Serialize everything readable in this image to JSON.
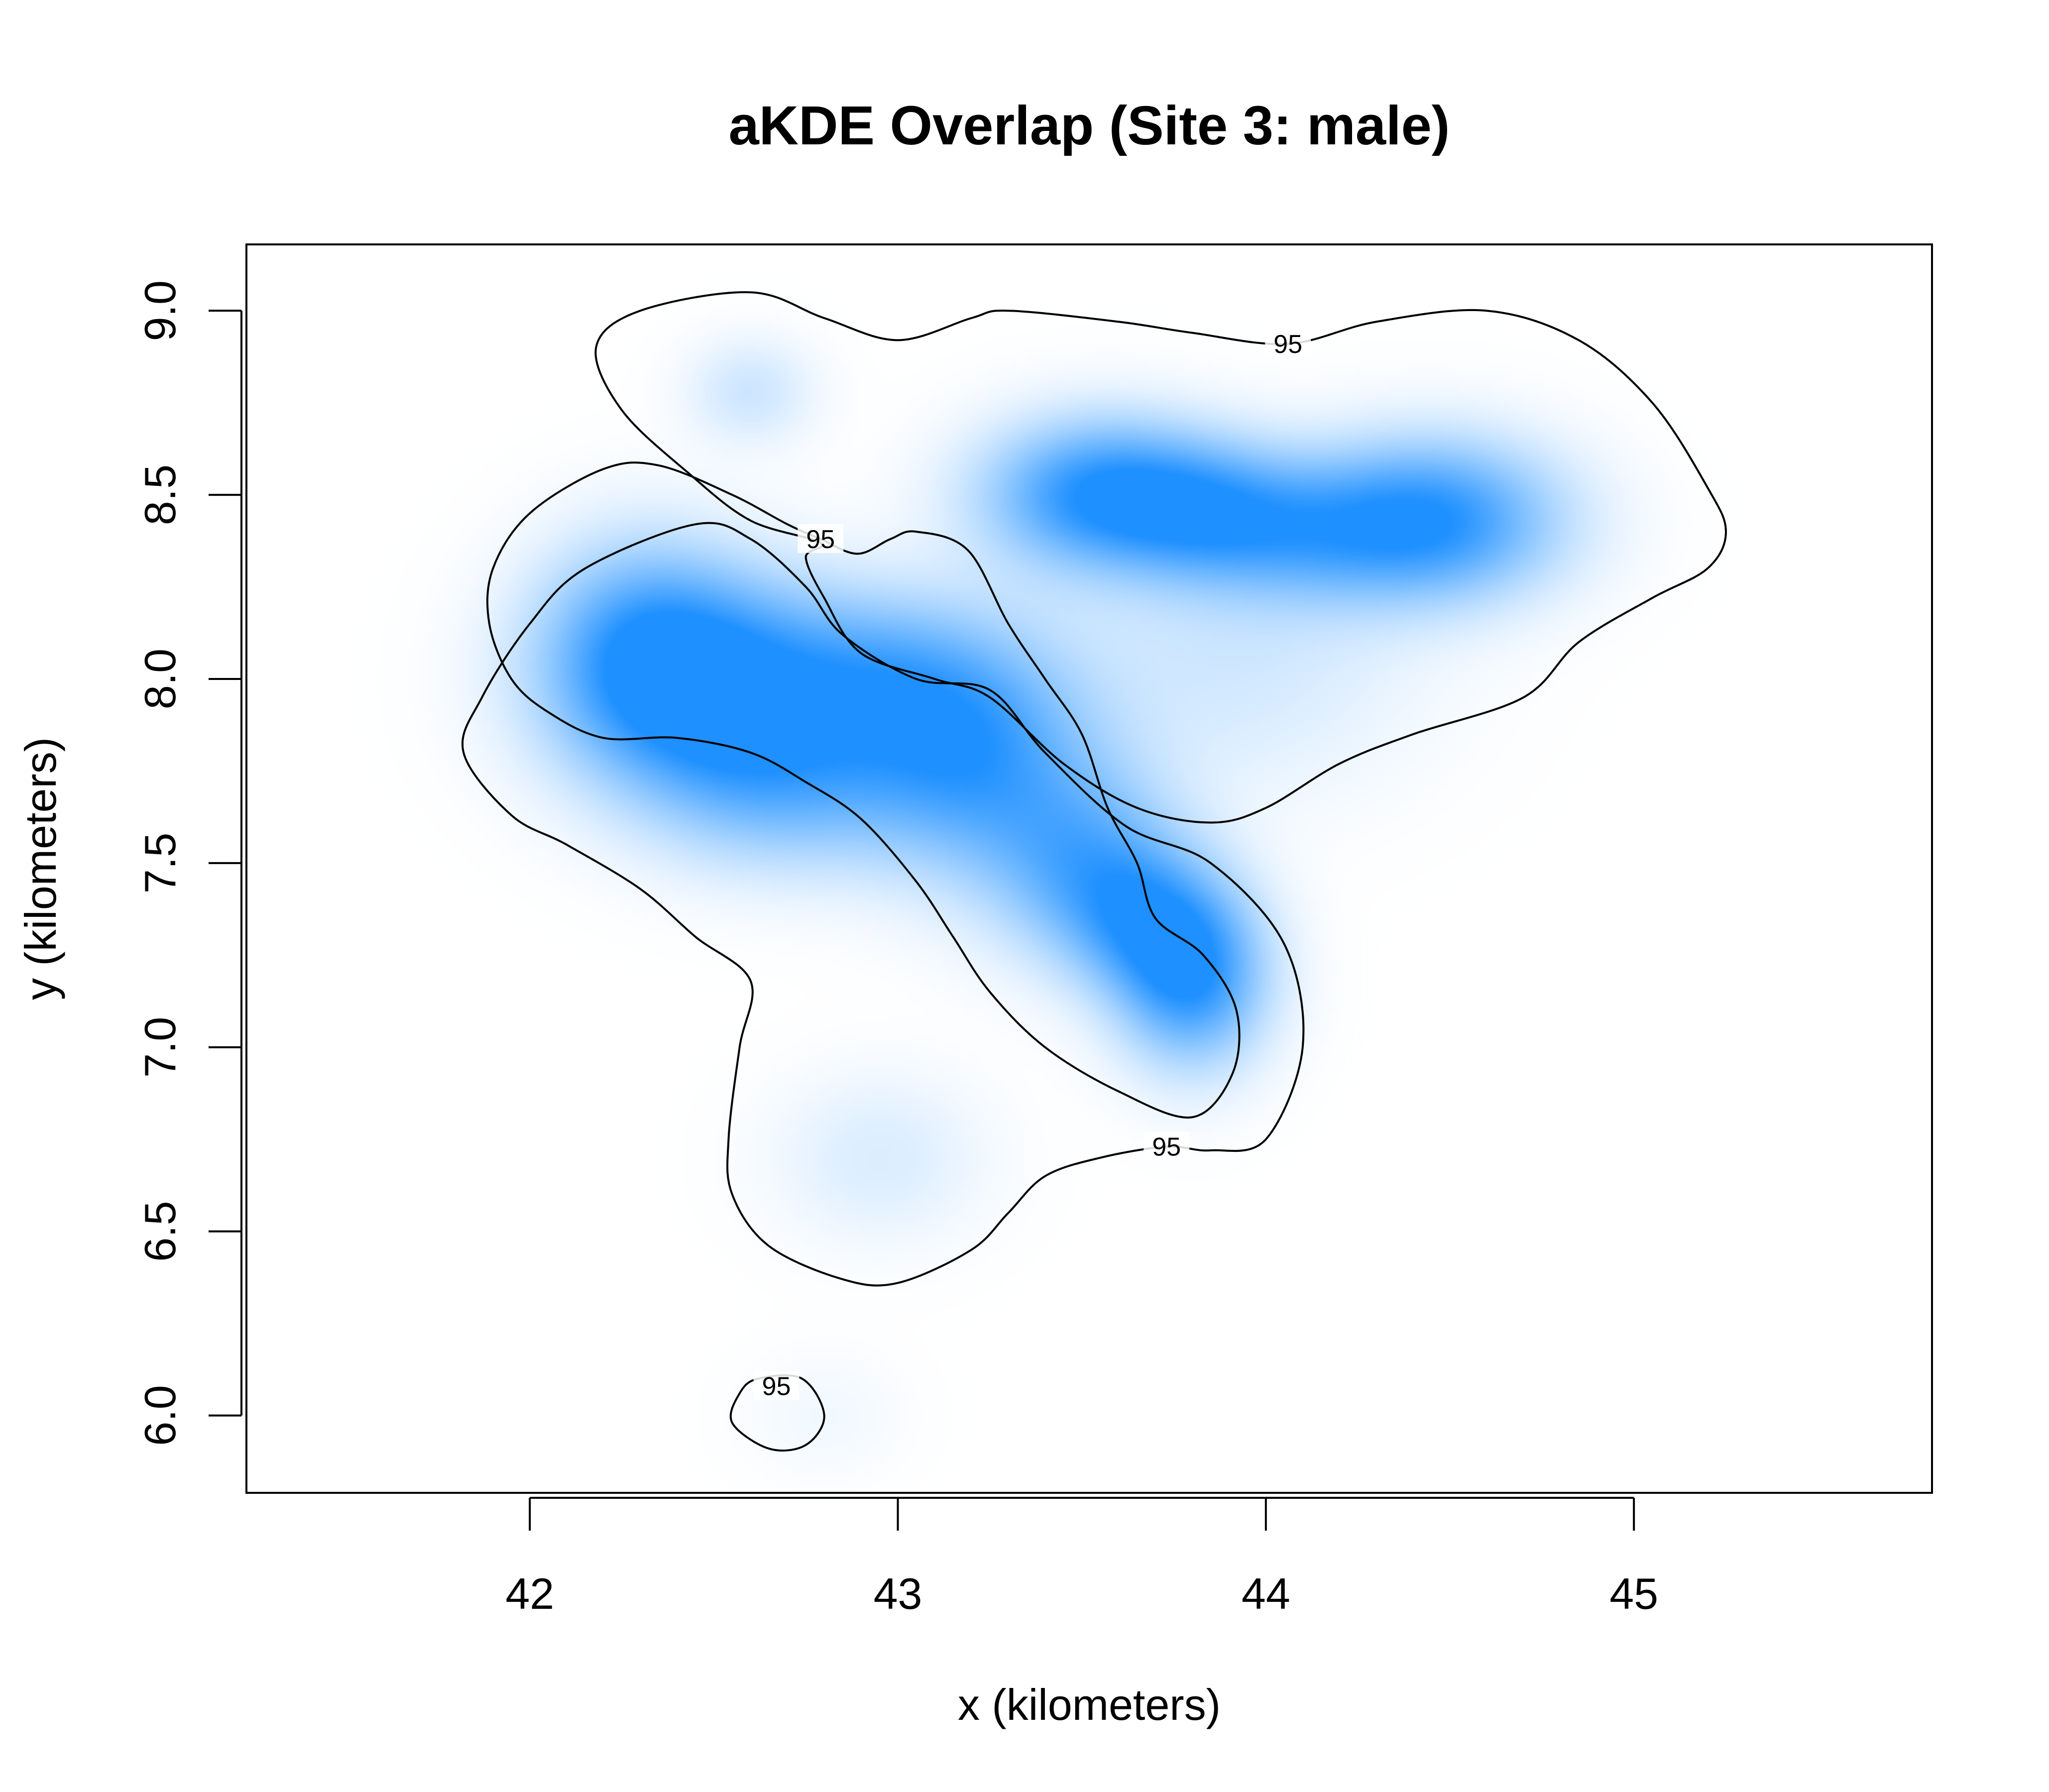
{
  "chart_data": {
    "type": "heatmap",
    "title": "aKDE Overlap (Site 3: male)",
    "xlabel": "x (kilometers)",
    "ylabel": "y (kilometers)",
    "xlim": [
      41.23,
      45.81
    ],
    "ylim": [
      5.79,
      9.18
    ],
    "xticks": [
      {
        "value": 42,
        "label": "42"
      },
      {
        "value": 43,
        "label": "43"
      },
      {
        "value": 44,
        "label": "44"
      },
      {
        "value": 45,
        "label": "45"
      }
    ],
    "yticks": [
      {
        "value": 6.0,
        "label": "6.0"
      },
      {
        "value": 6.5,
        "label": "6.5"
      },
      {
        "value": 7.0,
        "label": "7.0"
      },
      {
        "value": 7.5,
        "label": "7.5"
      },
      {
        "value": 8.0,
        "label": "8.0"
      },
      {
        "value": 8.5,
        "label": "8.5"
      },
      {
        "value": 9.0,
        "label": "9.0"
      }
    ],
    "grid": false,
    "legend": "none",
    "colors": {
      "high": "#1e90ff",
      "low": "#ffffff",
      "contour": "#000000"
    },
    "density_peaks": [
      {
        "x": 42.5,
        "y": 7.97,
        "sx": 0.27,
        "sy": 0.2,
        "w": 1.0
      },
      {
        "x": 42.3,
        "y": 8.1,
        "sx": 0.2,
        "sy": 0.2,
        "w": 0.55
      },
      {
        "x": 42.7,
        "y": 7.7,
        "sx": 0.25,
        "sy": 0.16,
        "w": 0.45
      },
      {
        "x": 43.2,
        "y": 7.8,
        "sx": 0.22,
        "sy": 0.22,
        "w": 0.8
      },
      {
        "x": 42.95,
        "y": 8.0,
        "sx": 0.22,
        "sy": 0.16,
        "w": 0.45
      },
      {
        "x": 43.5,
        "y": 7.5,
        "sx": 0.18,
        "sy": 0.18,
        "w": 0.6
      },
      {
        "x": 43.8,
        "y": 7.2,
        "sx": 0.14,
        "sy": 0.17,
        "w": 0.95
      },
      {
        "x": 43.65,
        "y": 7.35,
        "sx": 0.14,
        "sy": 0.14,
        "w": 0.5
      },
      {
        "x": 43.55,
        "y": 8.5,
        "sx": 0.22,
        "sy": 0.14,
        "w": 0.95
      },
      {
        "x": 43.85,
        "y": 8.45,
        "sx": 0.18,
        "sy": 0.13,
        "w": 0.55
      },
      {
        "x": 44.45,
        "y": 8.43,
        "sx": 0.24,
        "sy": 0.15,
        "w": 0.95
      },
      {
        "x": 44.1,
        "y": 8.4,
        "sx": 0.2,
        "sy": 0.13,
        "w": 0.4
      },
      {
        "x": 43.9,
        "y": 8.05,
        "sx": 0.35,
        "sy": 0.25,
        "w": 0.2
      },
      {
        "x": 42.6,
        "y": 8.78,
        "sx": 0.12,
        "sy": 0.1,
        "w": 0.22
      },
      {
        "x": 42.95,
        "y": 6.7,
        "sx": 0.2,
        "sy": 0.16,
        "w": 0.16
      },
      {
        "x": 42.8,
        "y": 6.0,
        "sx": 0.15,
        "sy": 0.12,
        "w": 0.06
      }
    ],
    "contours": [
      {
        "level": "95",
        "label_at": {
          "x": 44.06,
          "y": 8.91
        },
        "points": [
          [
            42.79,
            8.37
          ],
          [
            42.6,
            8.43
          ],
          [
            42.43,
            8.56
          ],
          [
            42.25,
            8.73
          ],
          [
            42.18,
            8.9
          ],
          [
            42.3,
            9.0
          ],
          [
            42.6,
            9.05
          ],
          [
            42.8,
            8.98
          ],
          [
            43.0,
            8.92
          ],
          [
            43.2,
            8.98
          ],
          [
            43.3,
            9.0
          ],
          [
            43.6,
            8.97
          ],
          [
            43.8,
            8.94
          ],
          [
            44.06,
            8.91
          ],
          [
            44.3,
            8.97
          ],
          [
            44.6,
            9.0
          ],
          [
            44.85,
            8.92
          ],
          [
            45.05,
            8.75
          ],
          [
            45.2,
            8.52
          ],
          [
            45.25,
            8.4
          ],
          [
            45.2,
            8.3
          ],
          [
            45.05,
            8.22
          ],
          [
            44.85,
            8.1
          ],
          [
            44.7,
            7.95
          ],
          [
            44.4,
            7.85
          ],
          [
            44.2,
            7.77
          ],
          [
            44.0,
            7.65
          ],
          [
            43.85,
            7.61
          ],
          [
            43.65,
            7.65
          ],
          [
            43.45,
            7.77
          ],
          [
            43.25,
            7.95
          ],
          [
            43.1,
            8.0
          ],
          [
            42.9,
            8.07
          ],
          [
            42.8,
            8.22
          ],
          [
            42.75,
            8.33
          ]
        ]
      },
      {
        "level": "95",
        "label_at": {
          "x": 42.79,
          "y": 8.38
        },
        "points": [
          [
            42.79,
            8.38
          ],
          [
            42.7,
            8.42
          ],
          [
            42.55,
            8.5
          ],
          [
            42.35,
            8.58
          ],
          [
            42.2,
            8.57
          ],
          [
            42.0,
            8.45
          ],
          [
            41.9,
            8.3
          ],
          [
            41.89,
            8.15
          ],
          [
            41.95,
            8.0
          ],
          [
            42.05,
            7.91
          ],
          [
            42.2,
            7.84
          ],
          [
            42.4,
            7.84
          ],
          [
            42.6,
            7.8
          ],
          [
            42.75,
            7.72
          ],
          [
            42.9,
            7.62
          ],
          [
            43.05,
            7.45
          ],
          [
            43.15,
            7.3
          ],
          [
            43.25,
            7.15
          ],
          [
            43.4,
            7.0
          ],
          [
            43.6,
            6.88
          ],
          [
            43.8,
            6.81
          ],
          [
            43.91,
            6.93
          ],
          [
            43.92,
            7.1
          ],
          [
            43.83,
            7.25
          ],
          [
            43.7,
            7.35
          ],
          [
            43.65,
            7.5
          ],
          [
            43.57,
            7.65
          ],
          [
            43.5,
            7.85
          ],
          [
            43.4,
            8.0
          ],
          [
            43.3,
            8.15
          ],
          [
            43.19,
            8.35
          ],
          [
            43.05,
            8.4
          ],
          [
            42.98,
            8.38
          ],
          [
            42.89,
            8.34
          ]
        ]
      },
      {
        "level": "95",
        "label_at": {
          "x": 43.73,
          "y": 6.73
        },
        "points": [
          [
            43.73,
            6.73
          ],
          [
            43.55,
            6.7
          ],
          [
            43.4,
            6.65
          ],
          [
            43.3,
            6.55
          ],
          [
            43.2,
            6.45
          ],
          [
            43.0,
            6.36
          ],
          [
            42.85,
            6.37
          ],
          [
            42.65,
            6.46
          ],
          [
            42.55,
            6.6
          ],
          [
            42.54,
            6.75
          ],
          [
            42.57,
            7.0
          ],
          [
            42.6,
            7.18
          ],
          [
            42.45,
            7.3
          ],
          [
            42.3,
            7.43
          ],
          [
            42.1,
            7.55
          ],
          [
            41.95,
            7.63
          ],
          [
            41.82,
            7.8
          ],
          [
            41.87,
            7.95
          ],
          [
            42.0,
            8.15
          ],
          [
            42.15,
            8.3
          ],
          [
            42.45,
            8.42
          ],
          [
            42.6,
            8.38
          ],
          [
            42.75,
            8.25
          ],
          [
            42.85,
            8.12
          ],
          [
            43.05,
            8.0
          ],
          [
            43.25,
            7.97
          ],
          [
            43.4,
            7.8
          ],
          [
            43.62,
            7.6
          ],
          [
            43.85,
            7.5
          ],
          [
            44.05,
            7.28
          ],
          [
            44.1,
            7.0
          ],
          [
            44.0,
            6.75
          ],
          [
            43.85,
            6.72
          ]
        ]
      },
      {
        "level": "95",
        "label_at": {
          "x": 42.67,
          "y": 6.08
        },
        "points": [
          [
            42.74,
            6.1
          ],
          [
            42.8,
            6.0
          ],
          [
            42.75,
            5.92
          ],
          [
            42.65,
            5.91
          ],
          [
            42.55,
            5.98
          ],
          [
            42.57,
            6.06
          ],
          [
            42.62,
            6.1
          ]
        ]
      }
    ]
  }
}
